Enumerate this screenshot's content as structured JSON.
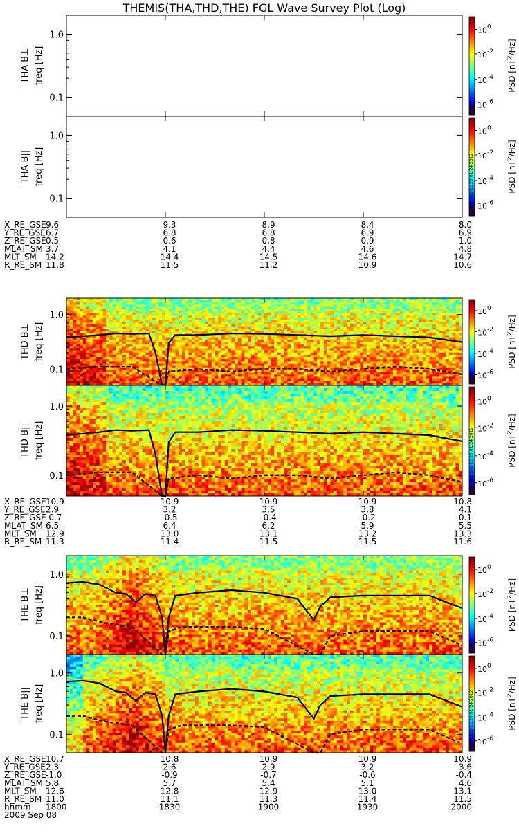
{
  "title": "THEMIS(THA,THD,THE) FGL Wave Survey Plot (Log)",
  "date_label": "2009 Sep 08",
  "time_axis_label": "hhmm",
  "time_ticks": [
    "1800",
    "1830",
    "1900",
    "1930",
    "2000"
  ],
  "ytick_labels": [
    "1.0",
    "0.1"
  ],
  "ylabel_unit": "freq [Hz]",
  "colorbar": {
    "label_prefix": "PSD [nT",
    "label_sup": "2",
    "label_suffix": "/Hz]",
    "ticks": [
      {
        "base": "10",
        "exp": "0"
      },
      {
        "base": "10",
        "exp": "-2"
      },
      {
        "base": "10",
        "exp": "-4"
      },
      {
        "base": "10",
        "exp": "-6"
      }
    ],
    "stamp": "Sat Sep 15 20:01:24 2012"
  },
  "panels": [
    {
      "id": "tha-bperp",
      "ylabel": "THA B⊥",
      "has_data": false
    },
    {
      "id": "tha-bpar",
      "ylabel": "THA B||",
      "has_data": false
    },
    {
      "id": "thd-bperp",
      "ylabel": "THD B⊥",
      "has_data": true
    },
    {
      "id": "thd-bpar",
      "ylabel": "THD B||",
      "has_data": true
    },
    {
      "id": "the-bperp",
      "ylabel": "THE B⊥",
      "has_data": true
    },
    {
      "id": "the-bpar",
      "ylabel": "THE B||",
      "has_data": true
    }
  ],
  "ephemeris": [
    {
      "probe": "THA",
      "rows": [
        {
          "label": "X_RE_GSE",
          "values": [
            "9.6",
            "9.3",
            "8.9",
            "8.4",
            "8.0"
          ]
        },
        {
          "label": "Y_RE_GSE",
          "values": [
            "6.7",
            "6.8",
            "6.8",
            "6.9",
            "6.9"
          ]
        },
        {
          "label": "Z_RE_GSE",
          "values": [
            "0.5",
            "0.6",
            "0.8",
            "0.9",
            "1.0"
          ]
        },
        {
          "label": "MLAT_SM",
          "values": [
            "3.7",
            "4.1",
            "4.4",
            "4.6",
            "4.8"
          ]
        },
        {
          "label": "MLT_SM",
          "values": [
            "14.2",
            "14.4",
            "14.5",
            "14.6",
            "14.7"
          ]
        },
        {
          "label": "R_RE_SM",
          "values": [
            "11.8",
            "11.5",
            "11.2",
            "10.9",
            "10.6"
          ]
        }
      ]
    },
    {
      "probe": "THD",
      "rows": [
        {
          "label": "X_RE_GSE",
          "values": [
            "10.9",
            "10.9",
            "10.9",
            "10.9",
            "10.8"
          ]
        },
        {
          "label": "Y_RE_GSE",
          "values": [
            "2.9",
            "3.2",
            "3.5",
            "3.8",
            "4.1"
          ]
        },
        {
          "label": "Z_RE_GSE",
          "values": [
            "-0.7",
            "-0.5",
            "-0.4",
            "-0.2",
            "-0.1"
          ]
        },
        {
          "label": "MLAT_SM",
          "values": [
            "6.5",
            "6.4",
            "6.2",
            "5.9",
            "5.5"
          ]
        },
        {
          "label": "MLT_SM",
          "values": [
            "12.9",
            "13.0",
            "13.1",
            "13.2",
            "13.3"
          ]
        },
        {
          "label": "R_RE_SM",
          "values": [
            "11.3",
            "11.4",
            "11.5",
            "11.5",
            "11.6"
          ]
        }
      ]
    },
    {
      "probe": "THE",
      "rows": [
        {
          "label": "X_RE_GSE",
          "values": [
            "10.7",
            "10.8",
            "10.9",
            "10.9",
            "10.9"
          ]
        },
        {
          "label": "Y_RE_GSE",
          "values": [
            "2.3",
            "2.6",
            "2.9",
            "3.2",
            "3.6"
          ]
        },
        {
          "label": "Z_RE_GSE",
          "values": [
            "-1.0",
            "-0.9",
            "-0.7",
            "-0.6",
            "-0.4"
          ]
        },
        {
          "label": "MLAT_SM",
          "values": [
            "5.8",
            "5.7",
            "5.4",
            "5.1",
            "4.6"
          ]
        },
        {
          "label": "MLT_SM",
          "values": [
            "12.6",
            "12.8",
            "12.9",
            "13.0",
            "13.1"
          ]
        },
        {
          "label": "R_RE_SM",
          "values": [
            "11.0",
            "11.1",
            "11.3",
            "11.4",
            "11.5"
          ]
        }
      ]
    }
  ],
  "chart_data": {
    "type": "heatmap",
    "title": "THEMIS(THA,THD,THE) FGL Wave Survey Plot (Log)",
    "x_range": [
      "1800",
      "2000"
    ],
    "x_ticks": [
      "1800",
      "1830",
      "1900",
      "1930",
      "2000"
    ],
    "y_scale": "log",
    "ylim": [
      0.05,
      2.0
    ],
    "y_ticks": [
      0.1,
      1.0
    ],
    "color_scale": "log",
    "clim": [
      1e-07,
      10
    ],
    "colorbar_ticks": [
      1,
      0.01,
      0.0001,
      1e-06
    ],
    "overlay_lines": {
      "thd": {
        "solid": {
          "x": [
            "1800",
            "1805",
            "1810",
            "1815",
            "1820",
            "1825",
            "1827",
            "1829",
            "1830",
            "1831",
            "1833",
            "1840",
            "1850",
            "1900",
            "1910",
            "1920",
            "1930",
            "1940",
            "1950",
            "2000"
          ],
          "y": [
            0.38,
            0.4,
            0.42,
            0.45,
            0.44,
            0.45,
            0.2,
            0.05,
            0.05,
            0.3,
            0.42,
            0.42,
            0.45,
            0.44,
            0.42,
            0.4,
            0.42,
            0.4,
            0.38,
            0.31
          ]
        },
        "dashed": {
          "x": [
            "1800",
            "1810",
            "1820",
            "1829",
            "1830",
            "1831",
            "1840",
            "1850",
            "1900",
            "1910",
            "1920",
            "1930",
            "1940",
            "1950",
            "2000"
          ],
          "y": [
            0.1,
            0.11,
            0.11,
            0.05,
            0.05,
            0.09,
            0.1,
            0.09,
            0.1,
            0.1,
            0.09,
            0.1,
            0.11,
            0.1,
            0.08
          ]
        }
      },
      "the": {
        "solid": {
          "x": [
            "1800",
            "1805",
            "1810",
            "1815",
            "1818",
            "1821",
            "1824",
            "1827",
            "1829",
            "1830",
            "1831",
            "1833",
            "1840",
            "1850",
            "1900",
            "1910",
            "1915",
            "1917",
            "1920",
            "1930",
            "1940",
            "1950",
            "2000"
          ],
          "y": [
            0.72,
            0.75,
            0.68,
            0.5,
            0.48,
            0.35,
            0.48,
            0.45,
            0.2,
            0.05,
            0.2,
            0.45,
            0.5,
            0.55,
            0.5,
            0.4,
            0.18,
            0.3,
            0.42,
            0.45,
            0.45,
            0.45,
            0.28
          ]
        },
        "dashed": {
          "x": [
            "1800",
            "1805",
            "1812",
            "1820",
            "1829",
            "1830",
            "1831",
            "1835",
            "1850",
            "1900",
            "1915",
            "1917",
            "1920",
            "1930",
            "1950",
            "2000"
          ],
          "y": [
            0.2,
            0.2,
            0.16,
            0.14,
            0.05,
            0.05,
            0.12,
            0.14,
            0.14,
            0.13,
            0.05,
            0.05,
            0.1,
            0.12,
            0.12,
            0.07
          ]
        }
      }
    }
  }
}
